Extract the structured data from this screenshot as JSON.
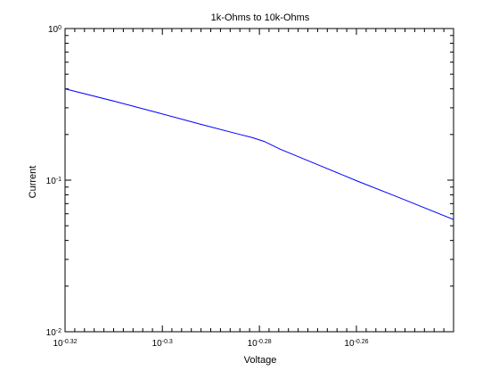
{
  "chart_data": {
    "type": "line",
    "title": "1k-Ohms to 10k-Ohms",
    "xlabel": "Voltage",
    "ylabel": "Current",
    "xscale": "log",
    "yscale": "log",
    "xlim": [
      0.4786,
      0.5754
    ],
    "ylim": [
      0.01,
      1
    ],
    "grid": false,
    "x_ticks": [
      {
        "value": 0.4786,
        "base": "10",
        "exponent": "-0.32"
      },
      {
        "value": 0.5012,
        "base": "10",
        "exponent": "-0.3"
      },
      {
        "value": 0.5248,
        "base": "10",
        "exponent": "-0.28"
      },
      {
        "value": 0.5495,
        "base": "10",
        "exponent": "-0.26"
      }
    ],
    "y_ticks": [
      {
        "value": 0.01,
        "base": "10",
        "exponent": "-2"
      },
      {
        "value": 0.1,
        "base": "10",
        "exponent": "-1"
      },
      {
        "value": 1,
        "base": "10",
        "exponent": "0"
      }
    ],
    "series": [
      {
        "color": "#0000ff",
        "x": [
          0.4786,
          0.49,
          0.5,
          0.51,
          0.52,
          0.523,
          0.526,
          0.53,
          0.54,
          0.55,
          0.56,
          0.5754
        ],
        "y": [
          0.4,
          0.331,
          0.279,
          0.235,
          0.2,
          0.191,
          0.18,
          0.16,
          0.125,
          0.098,
          0.078,
          0.055
        ]
      }
    ]
  }
}
